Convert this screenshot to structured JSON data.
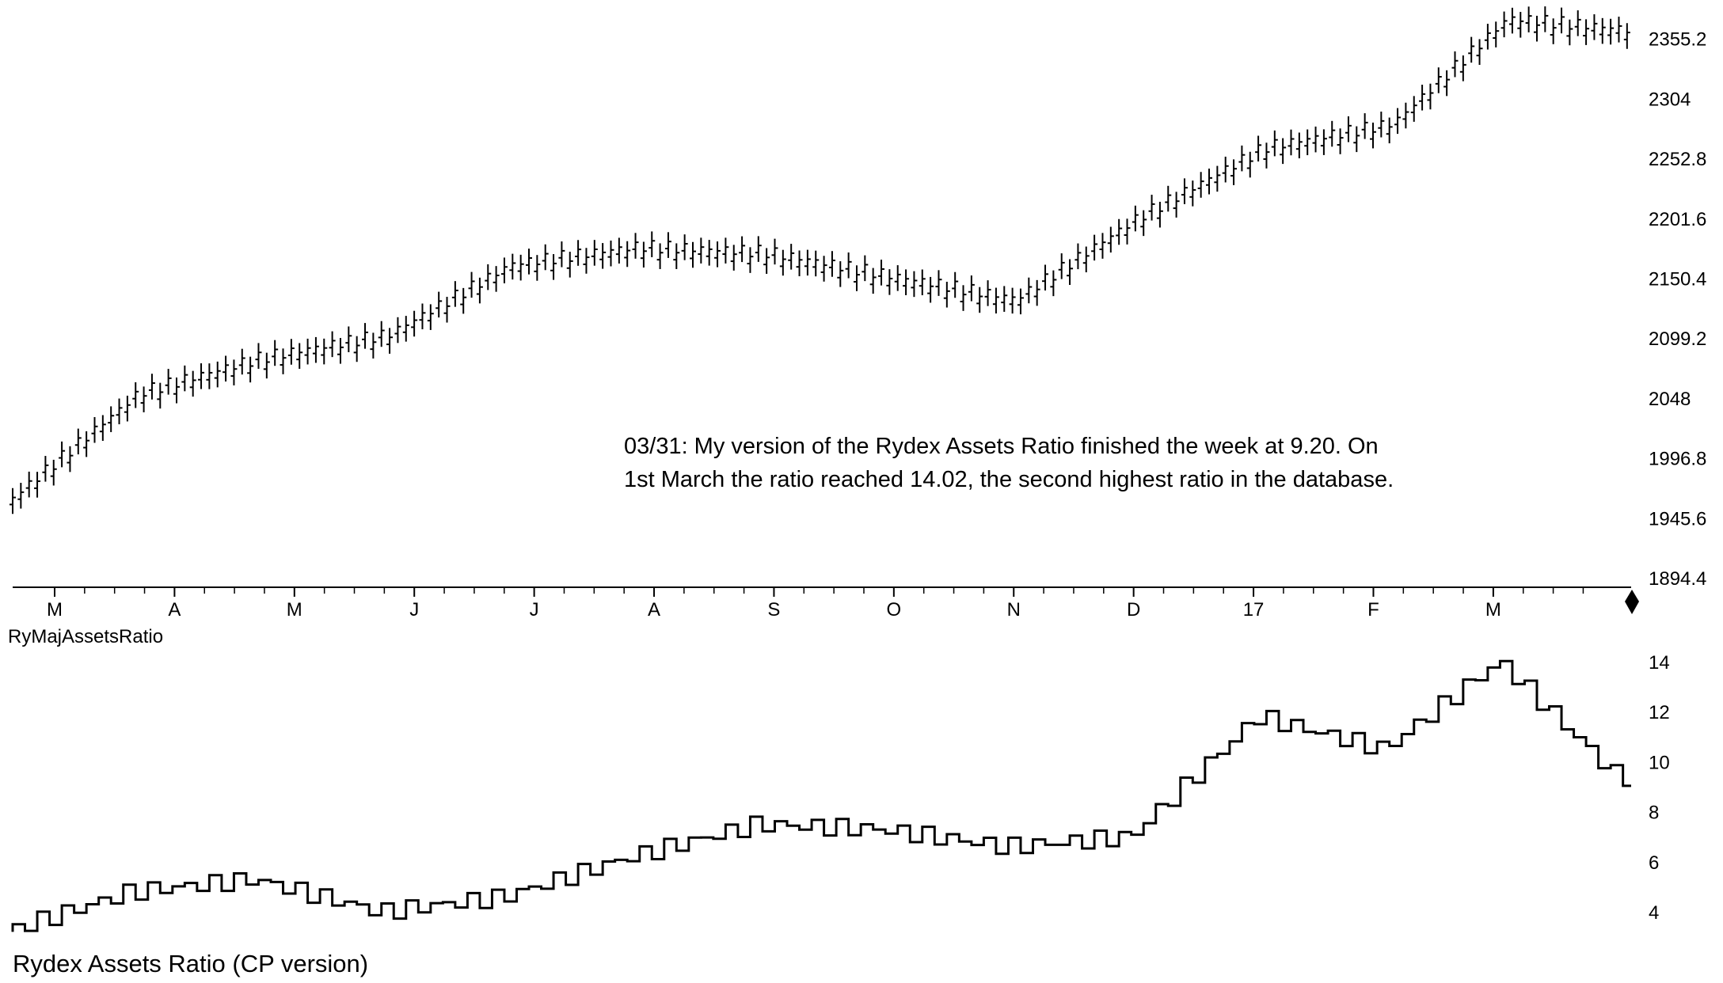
{
  "chart_data": [
    {
      "type": "bar",
      "style": "ohlc",
      "upper_right_axis_ticks": [
        "2355.2",
        "2304",
        "2252.8",
        "2201.6",
        "2150.4",
        "2099.2",
        "2048",
        "1996.8",
        "1945.6",
        "1894.4"
      ],
      "ylim": [
        1894.4,
        2380
      ],
      "x_tick_labels": [
        "M",
        "A",
        "M",
        "J",
        "J",
        "A",
        "S",
        "O",
        "N",
        "D",
        "17",
        "F",
        "M"
      ],
      "annotation_lines": [
        "03/31: My version of the Rydex Assets Ratio finished the week at 9.20.  On",
        "1st March the ratio reached 14.02, the second highest ratio in the database."
      ],
      "indicator_label": "RyMajAssetsRatio",
      "end_marker": "diamond",
      "series": [
        {
          "x": [
            "2016-03",
            "2016-04",
            "2016-05",
            "2016-06",
            "2016-07",
            "2016-08",
            "2016-09",
            "2016-10",
            "2016-11",
            "2016-12",
            "2017-01",
            "2017-02",
            "2017-03",
            "2017-03-31"
          ],
          "values": [
            1960,
            2050,
            2080,
            2100,
            2160,
            2175,
            2170,
            2150,
            2130,
            2200,
            2260,
            2280,
            2370,
            2360
          ]
        }
      ]
    },
    {
      "type": "line",
      "style": "step",
      "title": "Rydex Assets Ratio (CP version)",
      "y_ticks": [
        "14",
        "12",
        "10",
        "8",
        "6",
        "4"
      ],
      "ylim": [
        2.8,
        14.5
      ],
      "series": [
        {
          "x": [
            "2016-03",
            "2016-04",
            "2016-05",
            "2016-06",
            "2016-07",
            "2016-08",
            "2016-09",
            "2016-10",
            "2016-11",
            "2016-12",
            "2017-01",
            "2017-02",
            "2017-03-01",
            "2017-03-31"
          ],
          "values": [
            3.2,
            4.8,
            5.3,
            4.0,
            4.6,
            6.2,
            7.5,
            7.3,
            6.6,
            7.0,
            11.8,
            10.5,
            14.02,
            9.2
          ]
        }
      ]
    }
  ]
}
